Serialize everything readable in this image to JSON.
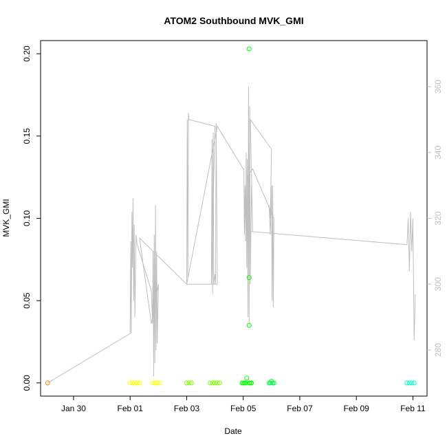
{
  "chart_data": {
    "type": "scatter",
    "title": "ATOM2 Southbound MVK_GMI",
    "xlabel": "Date",
    "ylabel": "MVK_GMI",
    "xlim": [
      "2016-01-28T20:00",
      "2016-02-11T12:00"
    ],
    "ylim": [
      -0.008,
      0.208
    ],
    "x_ticks": [
      {
        "label": "Jan 30",
        "date": "2016-01-30"
      },
      {
        "label": "Feb 01",
        "date": "2016-02-01"
      },
      {
        "label": "Feb 03",
        "date": "2016-02-03"
      },
      {
        "label": "Feb 05",
        "date": "2016-02-05"
      },
      {
        "label": "Feb 07",
        "date": "2016-02-07"
      },
      {
        "label": "Feb 09",
        "date": "2016-02-09"
      },
      {
        "label": "Feb 11",
        "date": "2016-02-11"
      }
    ],
    "y_ticks": [
      "0.00",
      "0.05",
      "0.10",
      "0.15",
      "0.20"
    ],
    "y2": {
      "color": "#bebebe",
      "ylim": [
        266,
        374
      ],
      "ticks": [
        "280",
        "300",
        "320",
        "340",
        "360"
      ]
    },
    "series": [
      {
        "color": "#ff8c00",
        "points": [
          [
            "2016-01-29T02:00",
            0.0
          ]
        ]
      },
      {
        "color": "#ffff00",
        "points": [
          [
            "2016-02-01T00:00",
            0.0
          ],
          [
            "2016-02-01T02:00",
            0.0
          ],
          [
            "2016-02-01T04:00",
            0.0
          ],
          [
            "2016-02-01T06:00",
            0.0
          ],
          [
            "2016-02-01T08:00",
            0.0
          ],
          [
            "2016-02-01T19:00",
            0.0
          ],
          [
            "2016-02-01T21:00",
            0.0
          ],
          [
            "2016-02-01T23:00",
            0.0
          ],
          [
            "2016-02-02T01:00",
            0.0
          ]
        ]
      },
      {
        "color": "#80ff00",
        "points": [
          [
            "2016-02-03T00:00",
            0.0
          ],
          [
            "2016-02-03T02:00",
            0.0
          ],
          [
            "2016-02-03T04:00",
            0.0
          ],
          [
            "2016-02-03T20:00",
            0.0
          ],
          [
            "2016-02-03T22:00",
            0.0
          ],
          [
            "2016-02-04T00:00",
            0.0
          ],
          [
            "2016-02-04T02:00",
            0.0
          ],
          [
            "2016-02-04T04:00",
            0.0
          ]
        ]
      },
      {
        "color": "#00ff00",
        "points": [
          [
            "2016-02-04T23:00",
            0.0
          ],
          [
            "2016-02-05T00:00",
            0.0
          ],
          [
            "2016-02-05T01:00",
            0.0
          ],
          [
            "2016-02-05T02:00",
            0.0
          ],
          [
            "2016-02-05T03:00",
            0.003
          ],
          [
            "2016-02-05T05:00",
            0.0
          ],
          [
            "2016-02-05T06:00",
            0.0
          ],
          [
            "2016-02-05T07:00",
            0.0
          ],
          [
            "2016-02-05T05:00",
            0.203
          ],
          [
            "2016-02-05T05:00",
            0.064
          ],
          [
            "2016-02-05T05:00",
            0.035
          ]
        ]
      },
      {
        "color": "#00ff40",
        "points": [
          [
            "2016-02-05T22:00",
            0.0
          ],
          [
            "2016-02-05T23:00",
            0.0
          ],
          [
            "2016-02-06T00:00",
            0.001
          ],
          [
            "2016-02-06T01:00",
            0.0
          ],
          [
            "2016-02-06T02:00",
            0.0
          ]
        ]
      },
      {
        "color": "#00ffcc",
        "points": [
          [
            "2016-02-10T19:00",
            0.0
          ],
          [
            "2016-02-10T21:00",
            0.0
          ],
          [
            "2016-02-10T23:00",
            0.0
          ],
          [
            "2016-02-11T01:00",
            0.0
          ]
        ]
      }
    ],
    "line_series": {
      "color": "#bebebe",
      "axis": "right",
      "points": [
        [
          "2016-01-29T02:00",
          270
        ],
        [
          "2016-02-01T00:00",
          285
        ],
        [
          "2016-02-01T00:30",
          313
        ],
        [
          "2016-02-01T01:00",
          285
        ],
        [
          "2016-02-01T01:30",
          322
        ],
        [
          "2016-02-01T02:00",
          305
        ],
        [
          "2016-02-01T02:30",
          326
        ],
        [
          "2016-02-01T03:00",
          295
        ],
        [
          "2016-02-01T03:30",
          318
        ],
        [
          "2016-02-01T04:00",
          290
        ],
        [
          "2016-02-01T05:00",
          315
        ],
        [
          "2016-02-01T06:00",
          312
        ],
        [
          "2016-02-01T18:00",
          298
        ],
        [
          "2016-02-01T19:00",
          288
        ],
        [
          "2016-02-01T19:30",
          310
        ],
        [
          "2016-02-01T20:00",
          272
        ],
        [
          "2016-02-01T20:30",
          315
        ],
        [
          "2016-02-01T21:00",
          276
        ],
        [
          "2016-02-01T21:30",
          324
        ],
        [
          "2016-02-01T22:00",
          280
        ],
        [
          "2016-02-01T22:30",
          310
        ],
        [
          "2016-02-01T23:00",
          282
        ],
        [
          "2016-02-02T00:00",
          300
        ],
        [
          "2016-02-01T18:00",
          288
        ],
        [
          "2016-02-01T08:00",
          314
        ],
        [
          "2016-02-03T00:00",
          300
        ],
        [
          "2016-02-03T00:30",
          350
        ],
        [
          "2016-02-03T01:00",
          302
        ],
        [
          "2016-02-03T01:30",
          352
        ],
        [
          "2016-02-03T02:00",
          350
        ],
        [
          "2016-02-04T00:00",
          348
        ],
        [
          "2016-02-03T21:00",
          300
        ],
        [
          "2016-02-03T21:30",
          344
        ],
        [
          "2016-02-03T22:00",
          297
        ],
        [
          "2016-02-03T22:30",
          346
        ],
        [
          "2016-02-03T23:00",
          300
        ],
        [
          "2016-02-04T00:00",
          303
        ],
        [
          "2016-02-04T00:30",
          300
        ],
        [
          "2016-02-04T01:00",
          349
        ],
        [
          "2016-02-04T02:00",
          300
        ],
        [
          "2016-02-03T00:00",
          300
        ],
        [
          "2016-02-04T02:00",
          348
        ],
        [
          "2016-02-05T00:00",
          335
        ],
        [
          "2016-02-05T00:30",
          335
        ],
        [
          "2016-02-05T01:00",
          315
        ],
        [
          "2016-02-05T01:30",
          330
        ],
        [
          "2016-02-05T02:00",
          313
        ],
        [
          "2016-02-05T02:30",
          340
        ],
        [
          "2016-02-05T03:00",
          305
        ],
        [
          "2016-02-05T03:30",
          338
        ],
        [
          "2016-02-05T04:00",
          290
        ],
        [
          "2016-02-05T04:30",
          360
        ],
        [
          "2016-02-05T05:00",
          288
        ],
        [
          "2016-02-05T05:30",
          354
        ],
        [
          "2016-02-05T06:00",
          300
        ],
        [
          "2016-02-05T07:00",
          330
        ],
        [
          "2016-02-05T08:00",
          316
        ],
        [
          "2016-02-05T06:00",
          350
        ],
        [
          "2016-02-06T00:00",
          341
        ],
        [
          "2016-02-05T23:00",
          320
        ],
        [
          "2016-02-05T22:00",
          324
        ],
        [
          "2016-02-05T23:00",
          315
        ],
        [
          "2016-02-06T00:00",
          330
        ],
        [
          "2016-02-06T00:30",
          295
        ],
        [
          "2016-02-06T01:00",
          330
        ],
        [
          "2016-02-06T01:30",
          293
        ],
        [
          "2016-02-06T02:00",
          320
        ],
        [
          "2016-02-05T08:00",
          335
        ],
        [
          "2016-02-05T04:00",
          333
        ],
        [
          "2016-02-05T06:00",
          316
        ],
        [
          "2016-02-10T19:00",
          312
        ],
        [
          "2016-02-10T20:00",
          320
        ],
        [
          "2016-02-10T21:00",
          304
        ],
        [
          "2016-02-10T22:00",
          322
        ],
        [
          "2016-02-10T23:00",
          310
        ],
        [
          "2016-02-11T00:00",
          320
        ],
        [
          "2016-02-11T01:00",
          283
        ],
        [
          "2016-02-11T02:00",
          297
        ]
      ]
    }
  }
}
